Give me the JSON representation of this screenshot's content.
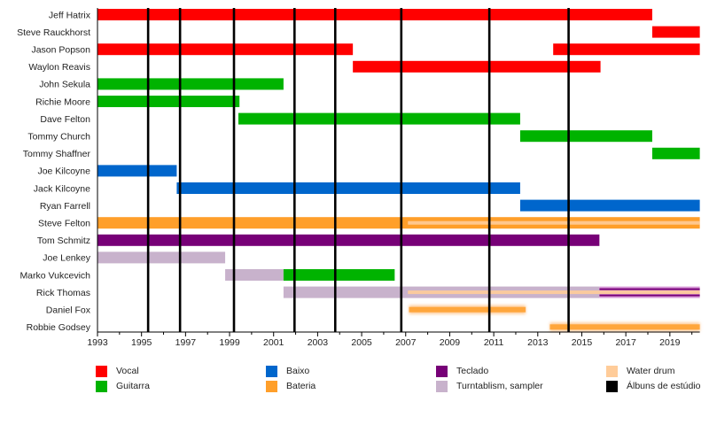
{
  "chart_data": {
    "type": "timeline",
    "title": "",
    "xlabel": "",
    "ylabel": "",
    "xlim": [
      1993,
      2020.36
    ],
    "x_ticks": [
      1993,
      1995,
      1997,
      1999,
      2001,
      2003,
      2005,
      2007,
      2009,
      2011,
      2013,
      2015,
      2017,
      2019
    ],
    "x_tick_labels": [
      "1993",
      "1995",
      "1997",
      "1999",
      "2001",
      "2003",
      "2005",
      "2007",
      "2009",
      "2011",
      "2013",
      "2015",
      "2017",
      "2019"
    ],
    "colors": {
      "vocal": "#ff0000",
      "guitarra": "#00b300",
      "baixo": "#0066cc",
      "bateria": "#ff9f2a",
      "teclado": "#770077",
      "turntablism": "#c8b2cc",
      "water_drum": "#ffcc99",
      "albums": "#000000",
      "rick_teclado_bg": "#d89ad8"
    },
    "members": [
      {
        "name": "Jeff Hatrix",
        "segments": [
          {
            "role": "vocal",
            "start": 1993,
            "end": 2018.2
          }
        ]
      },
      {
        "name": "Steve Rauckhorst",
        "segments": [
          {
            "role": "vocal",
            "start": 2018.2,
            "end": 2020.36
          }
        ]
      },
      {
        "name": "Jason Popson",
        "segments": [
          {
            "role": "vocal",
            "start": 1993,
            "end": 2004.6
          },
          {
            "role": "vocal",
            "start": 2013.7,
            "end": 2020.36
          }
        ]
      },
      {
        "name": "Waylon Reavis",
        "segments": [
          {
            "role": "vocal",
            "start": 2004.6,
            "end": 2015.85
          }
        ]
      },
      {
        "name": "John Sekula",
        "segments": [
          {
            "role": "guitarra",
            "start": 1993,
            "end": 2001.45
          }
        ]
      },
      {
        "name": "Richie Moore",
        "segments": [
          {
            "role": "guitarra",
            "start": 1993,
            "end": 1999.45
          }
        ]
      },
      {
        "name": "Dave Felton",
        "segments": [
          {
            "role": "guitarra",
            "start": 1999.4,
            "end": 2012.2
          }
        ]
      },
      {
        "name": "Tommy Church",
        "segments": [
          {
            "role": "guitarra",
            "start": 2012.2,
            "end": 2018.2
          }
        ]
      },
      {
        "name": "Tommy Shaffner",
        "segments": [
          {
            "role": "guitarra",
            "start": 2018.2,
            "end": 2020.36
          }
        ]
      },
      {
        "name": "Joe Kilcoyne",
        "segments": [
          {
            "role": "baixo",
            "start": 1993,
            "end": 1996.6
          }
        ]
      },
      {
        "name": "Jack Kilcoyne",
        "segments": [
          {
            "role": "baixo",
            "start": 1996.6,
            "end": 2012.2
          }
        ]
      },
      {
        "name": "Ryan Farrell",
        "segments": [
          {
            "role": "baixo",
            "start": 2012.2,
            "end": 2020.36
          }
        ]
      },
      {
        "name": "Steve Felton",
        "segments": [
          {
            "role": "bateria",
            "start": 1993,
            "end": 2020.36
          },
          {
            "role": "water_drum",
            "start": 2007.1,
            "end": 2020.36,
            "stripe": true
          }
        ]
      },
      {
        "name": "Tom Schmitz",
        "segments": [
          {
            "role": "teclado",
            "start": 1993,
            "end": 2015.8
          }
        ]
      },
      {
        "name": "Joe Lenkey",
        "segments": [
          {
            "role": "turntablism",
            "start": 1993,
            "end": 1998.8
          }
        ]
      },
      {
        "name": "Marko Vukcevich",
        "segments": [
          {
            "role": "turntablism",
            "start": 1998.8,
            "end": 2001.45
          },
          {
            "role": "guitarra",
            "start": 2001.45,
            "end": 2006.5
          }
        ]
      },
      {
        "name": "Rick Thomas",
        "segments": [
          {
            "role": "turntablism",
            "start": 2001.45,
            "end": 2015.8
          },
          {
            "role": "rick_teclado_bg",
            "start": 2015.8,
            "end": 2020.36
          },
          {
            "role": "teclado",
            "start": 2015.8,
            "end": 2020.36,
            "double_stripe": true
          },
          {
            "role": "water_drum",
            "start": 2007.1,
            "end": 2020.36,
            "stripe": true
          }
        ]
      },
      {
        "name": "Daniel Fox",
        "segments": [
          {
            "role": "bateria",
            "start": 2007.15,
            "end": 2012.45,
            "glow": true
          }
        ]
      },
      {
        "name": "Robbie Godsey",
        "segments": [
          {
            "role": "bateria",
            "start": 2013.55,
            "end": 2020.36,
            "glow": true
          }
        ]
      }
    ],
    "albums": [
      1995.3,
      1996.75,
      1999.2,
      2001.95,
      2003.8,
      2006.8,
      2010.8,
      2014.4
    ],
    "legend_position": "bottom",
    "legend": [
      {
        "label": "Vocal",
        "color_key": "vocal"
      },
      {
        "label": "Guitarra",
        "color_key": "guitarra"
      },
      {
        "label": "Baixo",
        "color_key": "baixo"
      },
      {
        "label": "Bateria",
        "color_key": "bateria"
      },
      {
        "label": "Teclado",
        "color_key": "teclado"
      },
      {
        "label": "Turntablism, sampler",
        "color_key": "turntablism"
      },
      {
        "label": "Water drum",
        "color_key": "water_drum"
      },
      {
        "label": "Álbuns de estúdio",
        "color_key": "albums"
      }
    ]
  }
}
